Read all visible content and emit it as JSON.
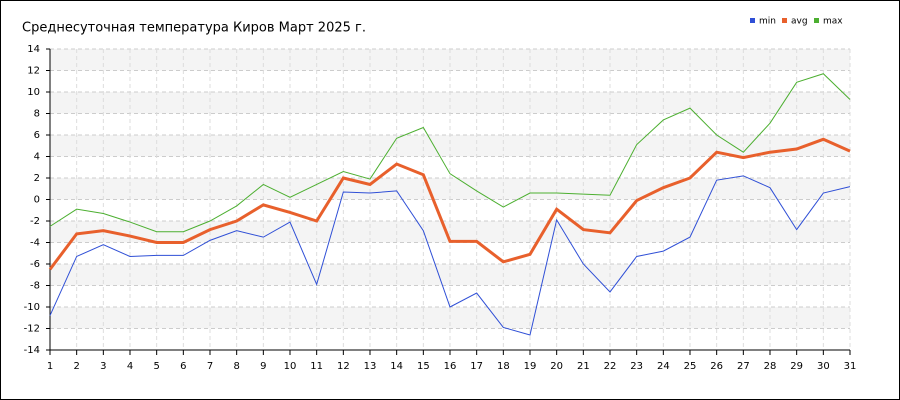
{
  "chart_data": {
    "type": "line",
    "title": "Среднесуточная температура Киров  Март 2025 г.",
    "x": [
      1,
      2,
      3,
      4,
      5,
      6,
      7,
      8,
      9,
      10,
      11,
      12,
      13,
      14,
      15,
      16,
      17,
      18,
      19,
      20,
      21,
      22,
      23,
      24,
      25,
      26,
      27,
      28,
      29,
      30,
      31
    ],
    "xlim": [
      1,
      31
    ],
    "xticks": [
      1,
      2,
      3,
      4,
      5,
      6,
      7,
      8,
      9,
      10,
      11,
      12,
      13,
      14,
      15,
      16,
      17,
      18,
      19,
      20,
      21,
      22,
      23,
      24,
      25,
      26,
      27,
      28,
      29,
      30,
      31
    ],
    "ylim": [
      -14,
      14
    ],
    "yticks": [
      -14,
      -12,
      -10,
      -8,
      -6,
      -4,
      -2,
      0,
      2,
      4,
      6,
      8,
      10,
      12,
      14
    ],
    "grid": true,
    "legend": "top-right",
    "series": [
      {
        "name": "min",
        "color": "#2f4fd6",
        "values": [
          -10.8,
          -5.3,
          -4.2,
          -5.3,
          -5.2,
          -5.2,
          -3.8,
          -2.9,
          -3.5,
          -2.1,
          -7.9,
          0.7,
          0.6,
          0.8,
          -2.9,
          -10.0,
          -8.7,
          -11.9,
          -12.6,
          -1.9,
          -6.0,
          -8.6,
          -5.3,
          -4.8,
          -3.5,
          1.8,
          2.2,
          1.1,
          -2.8,
          0.6,
          1.2
        ]
      },
      {
        "name": "avg",
        "color": "#e8602c",
        "values": [
          -6.5,
          -3.2,
          -2.9,
          -3.4,
          -4.0,
          -4.0,
          -2.8,
          -2.0,
          -0.5,
          -1.2,
          -2.0,
          2.0,
          1.4,
          3.3,
          2.3,
          -3.9,
          -3.9,
          -5.8,
          -5.1,
          -0.9,
          -2.8,
          -3.1,
          -0.1,
          1.1,
          2.0,
          4.4,
          3.9,
          4.4,
          4.7,
          5.6,
          4.5
        ]
      },
      {
        "name": "max",
        "color": "#4caf30",
        "values": [
          -2.5,
          -0.9,
          -1.3,
          -2.1,
          -3.0,
          -3.0,
          -2.0,
          -0.6,
          1.4,
          0.2,
          1.4,
          2.6,
          1.9,
          5.7,
          6.7,
          2.4,
          0.8,
          -0.7,
          0.6,
          0.6,
          0.5,
          0.4,
          5.1,
          7.4,
          8.5,
          6.0,
          4.4,
          7.1,
          10.9,
          11.7,
          9.3
        ]
      }
    ]
  }
}
